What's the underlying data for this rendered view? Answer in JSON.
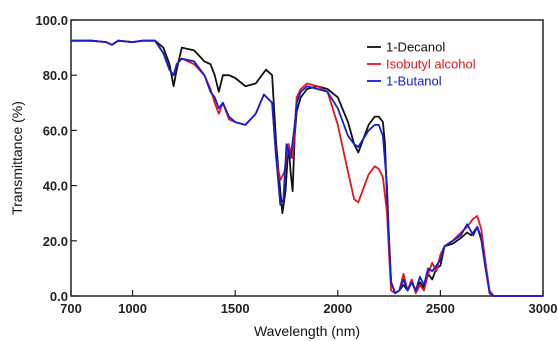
{
  "chart_data": {
    "type": "line",
    "title": "",
    "xlabel": "Wavelength (nm)",
    "ylabel": "Transmittance (%)",
    "xlim": [
      700,
      3000
    ],
    "ylim": [
      0,
      100
    ],
    "x_ticks": [
      "700",
      "1000",
      "1500",
      "2000",
      "2500",
      "3000"
    ],
    "y_ticks": [
      "0.0",
      "20.0",
      "40.0",
      "60.0",
      "80.0",
      "100.0"
    ],
    "x_tick_values": [
      700,
      1000,
      1500,
      2000,
      2500,
      3000
    ],
    "y_tick_values": [
      0,
      20,
      40,
      60,
      80,
      100
    ],
    "grid": false,
    "legend_position": "top-right",
    "series": [
      {
        "name": "1-Decanol",
        "color": "#111111",
        "points": [
          [
            700,
            92.5
          ],
          [
            800,
            92.5
          ],
          [
            870,
            92
          ],
          [
            900,
            91
          ],
          [
            930,
            92.5
          ],
          [
            1000,
            92
          ],
          [
            1050,
            92.5
          ],
          [
            1110,
            92.5
          ],
          [
            1150,
            90
          ],
          [
            1180,
            84
          ],
          [
            1200,
            76
          ],
          [
            1215,
            82
          ],
          [
            1240,
            90
          ],
          [
            1300,
            89
          ],
          [
            1350,
            85
          ],
          [
            1380,
            84
          ],
          [
            1400,
            80
          ],
          [
            1420,
            74
          ],
          [
            1440,
            80
          ],
          [
            1470,
            80
          ],
          [
            1500,
            79
          ],
          [
            1550,
            76
          ],
          [
            1600,
            77
          ],
          [
            1650,
            82
          ],
          [
            1680,
            80
          ],
          [
            1700,
            55
          ],
          [
            1720,
            38
          ],
          [
            1730,
            30
          ],
          [
            1745,
            38
          ],
          [
            1760,
            55
          ],
          [
            1770,
            45
          ],
          [
            1780,
            38
          ],
          [
            1790,
            58
          ],
          [
            1800,
            67
          ],
          [
            1820,
            72
          ],
          [
            1850,
            75
          ],
          [
            1900,
            76
          ],
          [
            1950,
            75
          ],
          [
            2000,
            72
          ],
          [
            2050,
            63
          ],
          [
            2080,
            55
          ],
          [
            2100,
            52
          ],
          [
            2120,
            56
          ],
          [
            2150,
            62
          ],
          [
            2180,
            65
          ],
          [
            2200,
            65
          ],
          [
            2220,
            63
          ],
          [
            2230,
            55
          ],
          [
            2240,
            35
          ],
          [
            2250,
            20
          ],
          [
            2260,
            5
          ],
          [
            2280,
            1
          ],
          [
            2300,
            2
          ],
          [
            2320,
            4
          ],
          [
            2340,
            2
          ],
          [
            2360,
            5
          ],
          [
            2380,
            2
          ],
          [
            2400,
            5
          ],
          [
            2420,
            3
          ],
          [
            2440,
            8
          ],
          [
            2460,
            6
          ],
          [
            2480,
            10
          ],
          [
            2500,
            11
          ],
          [
            2520,
            18
          ],
          [
            2560,
            19
          ],
          [
            2600,
            21
          ],
          [
            2630,
            23
          ],
          [
            2650,
            22
          ],
          [
            2680,
            25
          ],
          [
            2700,
            21
          ],
          [
            2720,
            12
          ],
          [
            2740,
            1
          ],
          [
            2760,
            0
          ],
          [
            2800,
            0
          ],
          [
            3000,
            0
          ]
        ]
      },
      {
        "name": "Isobutyl alcohol",
        "color": "#e8141c",
        "points": [
          [
            700,
            92.5
          ],
          [
            800,
            92.5
          ],
          [
            870,
            92
          ],
          [
            900,
            91
          ],
          [
            930,
            92.5
          ],
          [
            1000,
            92
          ],
          [
            1050,
            92.5
          ],
          [
            1110,
            92.5
          ],
          [
            1150,
            88
          ],
          [
            1180,
            82
          ],
          [
            1200,
            80
          ],
          [
            1215,
            84
          ],
          [
            1240,
            86
          ],
          [
            1300,
            84
          ],
          [
            1350,
            80
          ],
          [
            1380,
            75
          ],
          [
            1400,
            70
          ],
          [
            1420,
            66
          ],
          [
            1440,
            70
          ],
          [
            1470,
            64
          ],
          [
            1500,
            63
          ],
          [
            1550,
            62
          ],
          [
            1600,
            66
          ],
          [
            1640,
            73
          ],
          [
            1680,
            70
          ],
          [
            1700,
            50
          ],
          [
            1720,
            42
          ],
          [
            1740,
            45
          ],
          [
            1760,
            55
          ],
          [
            1780,
            50
          ],
          [
            1790,
            60
          ],
          [
            1800,
            72
          ],
          [
            1820,
            75
          ],
          [
            1850,
            77
          ],
          [
            1900,
            76
          ],
          [
            1950,
            74
          ],
          [
            2000,
            62
          ],
          [
            2050,
            45
          ],
          [
            2080,
            35
          ],
          [
            2100,
            34
          ],
          [
            2150,
            44
          ],
          [
            2180,
            47
          ],
          [
            2200,
            46
          ],
          [
            2220,
            43
          ],
          [
            2240,
            30
          ],
          [
            2250,
            15
          ],
          [
            2260,
            2
          ],
          [
            2280,
            1
          ],
          [
            2300,
            2
          ],
          [
            2320,
            8
          ],
          [
            2340,
            2
          ],
          [
            2360,
            6
          ],
          [
            2380,
            1
          ],
          [
            2400,
            4
          ],
          [
            2420,
            2
          ],
          [
            2440,
            8
          ],
          [
            2460,
            12
          ],
          [
            2480,
            9
          ],
          [
            2500,
            15
          ],
          [
            2520,
            18
          ],
          [
            2560,
            20
          ],
          [
            2600,
            23
          ],
          [
            2630,
            25
          ],
          [
            2660,
            28
          ],
          [
            2680,
            29
          ],
          [
            2700,
            24
          ],
          [
            2720,
            12
          ],
          [
            2740,
            2
          ],
          [
            2760,
            0
          ],
          [
            2800,
            0
          ],
          [
            3000,
            0
          ]
        ]
      },
      {
        "name": "1-Butanol",
        "color": "#1420d4",
        "points": [
          [
            700,
            92.5
          ],
          [
            800,
            92.5
          ],
          [
            870,
            92
          ],
          [
            900,
            91
          ],
          [
            930,
            92.5
          ],
          [
            1000,
            92
          ],
          [
            1050,
            92.5
          ],
          [
            1110,
            92.5
          ],
          [
            1150,
            88
          ],
          [
            1180,
            82
          ],
          [
            1200,
            80
          ],
          [
            1215,
            84
          ],
          [
            1240,
            86
          ],
          [
            1300,
            85
          ],
          [
            1350,
            80
          ],
          [
            1380,
            74
          ],
          [
            1400,
            72
          ],
          [
            1420,
            68
          ],
          [
            1440,
            70
          ],
          [
            1470,
            65
          ],
          [
            1500,
            63
          ],
          [
            1550,
            62
          ],
          [
            1600,
            66
          ],
          [
            1640,
            73
          ],
          [
            1680,
            70
          ],
          [
            1700,
            50
          ],
          [
            1720,
            33
          ],
          [
            1735,
            35
          ],
          [
            1750,
            55
          ],
          [
            1770,
            50
          ],
          [
            1790,
            62
          ],
          [
            1800,
            70
          ],
          [
            1820,
            74
          ],
          [
            1850,
            76
          ],
          [
            1900,
            75
          ],
          [
            1950,
            74
          ],
          [
            2000,
            68
          ],
          [
            2050,
            58
          ],
          [
            2080,
            55
          ],
          [
            2100,
            54
          ],
          [
            2150,
            60
          ],
          [
            2180,
            62
          ],
          [
            2200,
            62
          ],
          [
            2220,
            58
          ],
          [
            2240,
            40
          ],
          [
            2250,
            20
          ],
          [
            2260,
            5
          ],
          [
            2280,
            1
          ],
          [
            2300,
            2
          ],
          [
            2320,
            6
          ],
          [
            2340,
            2
          ],
          [
            2360,
            5
          ],
          [
            2380,
            2
          ],
          [
            2400,
            7
          ],
          [
            2420,
            4
          ],
          [
            2440,
            10
          ],
          [
            2460,
            9
          ],
          [
            2480,
            11
          ],
          [
            2500,
            13
          ],
          [
            2520,
            18
          ],
          [
            2560,
            20
          ],
          [
            2600,
            22
          ],
          [
            2630,
            26
          ],
          [
            2660,
            22
          ],
          [
            2680,
            25
          ],
          [
            2700,
            20
          ],
          [
            2720,
            10
          ],
          [
            2740,
            1
          ],
          [
            2760,
            0
          ],
          [
            2800,
            0
          ],
          [
            3000,
            0
          ]
        ]
      }
    ]
  }
}
